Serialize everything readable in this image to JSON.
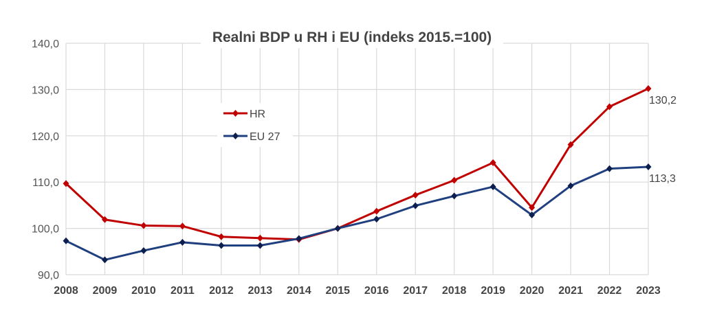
{
  "chart_data": {
    "type": "line",
    "title": "Realni BDP u RH i EU (indeks 2015.=100)",
    "xlabel": "",
    "ylabel": "",
    "ylim": [
      90,
      140
    ],
    "y_ticks": [
      "90,0",
      "100,0",
      "110,0",
      "120,0",
      "130,0",
      "140,0"
    ],
    "grid": true,
    "legend_position": "upper-left inside",
    "categories": [
      "2008",
      "2009",
      "2010",
      "2011",
      "2012",
      "2013",
      "2014",
      "2015",
      "2016",
      "2017",
      "2018",
      "2019",
      "2020",
      "2021",
      "2022",
      "2023"
    ],
    "series": [
      {
        "name": "HR",
        "color": "#c00000",
        "values": [
          109.7,
          101.9,
          100.6,
          100.5,
          98.2,
          97.9,
          97.6,
          100.0,
          103.7,
          107.2,
          110.4,
          114.2,
          104.5,
          118.1,
          126.3,
          130.2
        ],
        "end_label": "130,2"
      },
      {
        "name": "EU 27",
        "color": "#1f3f7f",
        "values": [
          97.3,
          93.2,
          95.2,
          97.0,
          96.3,
          96.3,
          97.8,
          100.0,
          102.0,
          104.9,
          107.0,
          109.0,
          102.9,
          109.2,
          112.9,
          113.3
        ],
        "end_label": "113,3"
      }
    ]
  }
}
